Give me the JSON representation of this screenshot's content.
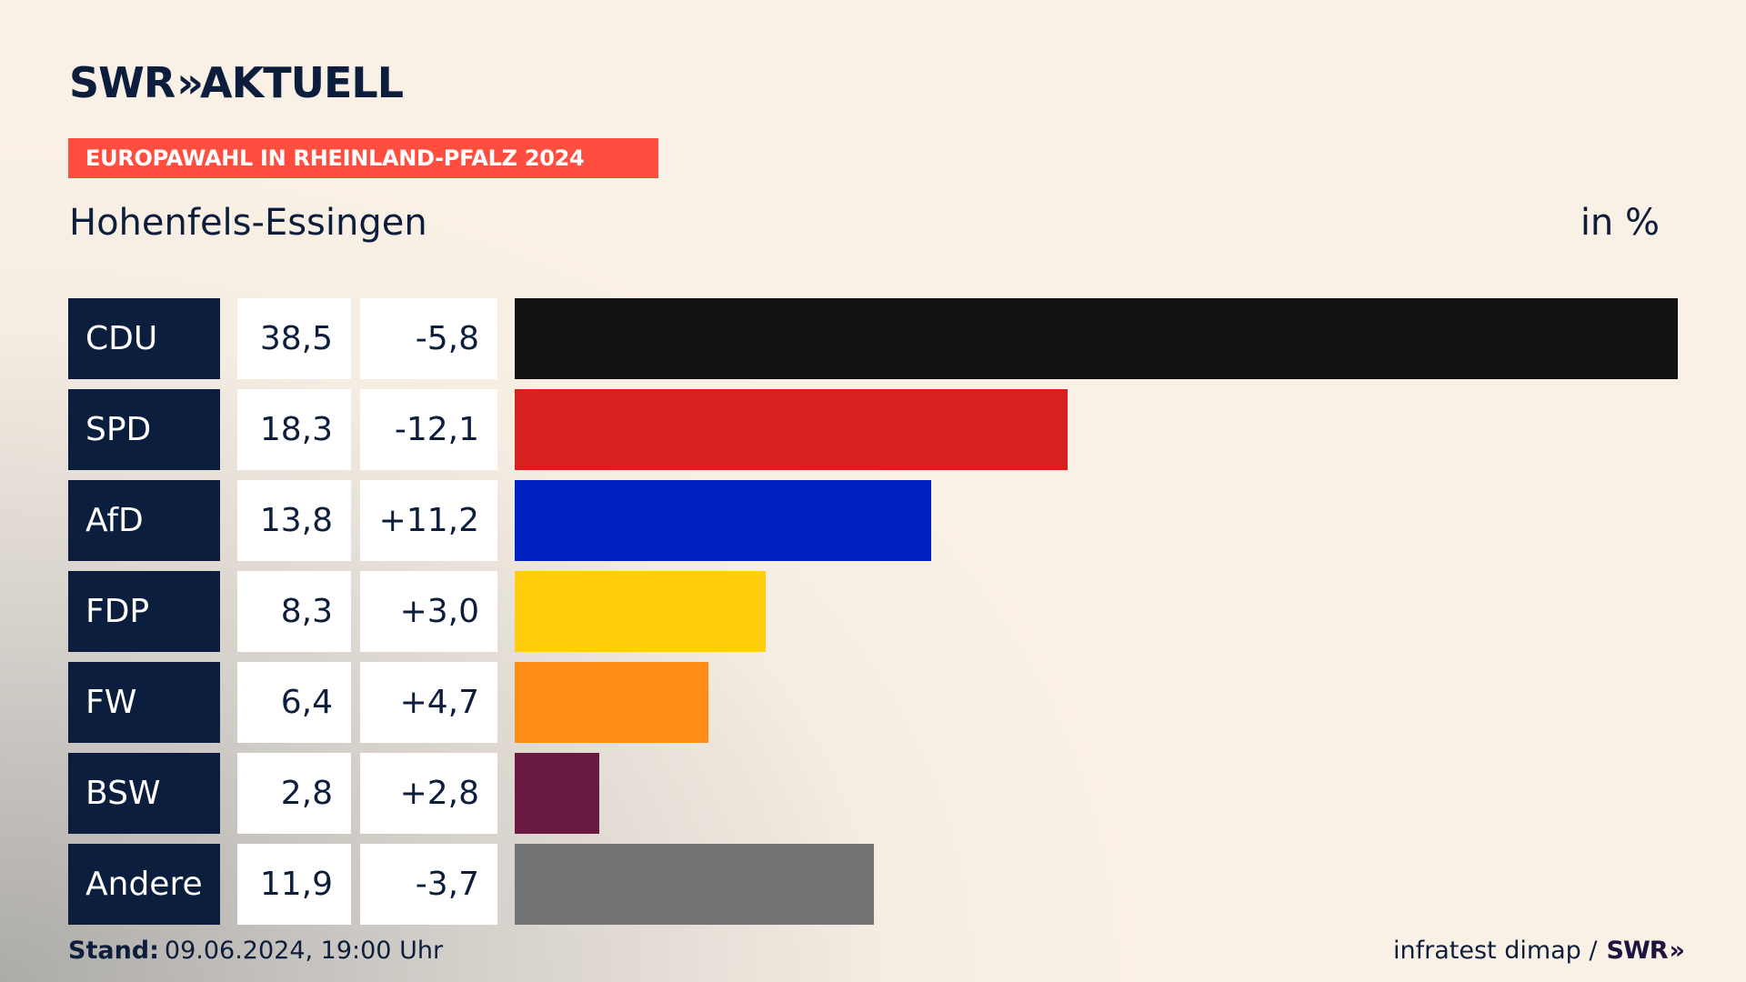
{
  "header": {
    "logo_text": "SWR",
    "logo_chevrons": "»",
    "logo_suffix": "AKTUELL",
    "banner": "EUROPAWAHL IN RHEINLAND-PFALZ 2024"
  },
  "colors": {
    "banner": "#ff4e3f",
    "party_box": "#0c1e3e",
    "background": "#faf1e6"
  },
  "chart_data": {
    "type": "bar",
    "title": "Hohenfels-Essingen",
    "unit_label": "in %",
    "orientation": "horizontal",
    "categories": [
      "CDU",
      "SPD",
      "AfD",
      "FDP",
      "FW",
      "BSW",
      "Andere"
    ],
    "values": [
      38.5,
      18.3,
      13.8,
      8.3,
      6.4,
      2.8,
      11.9
    ],
    "value_labels": [
      "38,5",
      "18,3",
      "13,8",
      "8,3",
      "6,4",
      "2,8",
      "11,9"
    ],
    "changes": [
      -5.8,
      -12.1,
      11.2,
      3.0,
      4.7,
      2.8,
      -3.7
    ],
    "change_labels": [
      "-5,8",
      "-12,1",
      "+11,2",
      "+3,0",
      "+4,7",
      "+2,8",
      "-3,7"
    ],
    "bar_colors": [
      "#121212",
      "#d8201f",
      "#0021c2",
      "#ffcd0c",
      "#ff8c17",
      "#691a40",
      "#737476"
    ],
    "xlim": [
      0,
      38.5
    ],
    "grid": false
  },
  "footer": {
    "stand_label": "Stand:",
    "stand_value": "09.06.2024, 19:00 Uhr",
    "source": "infratest dimap /",
    "source_logo": "SWR",
    "source_logo_chevrons": "»"
  }
}
